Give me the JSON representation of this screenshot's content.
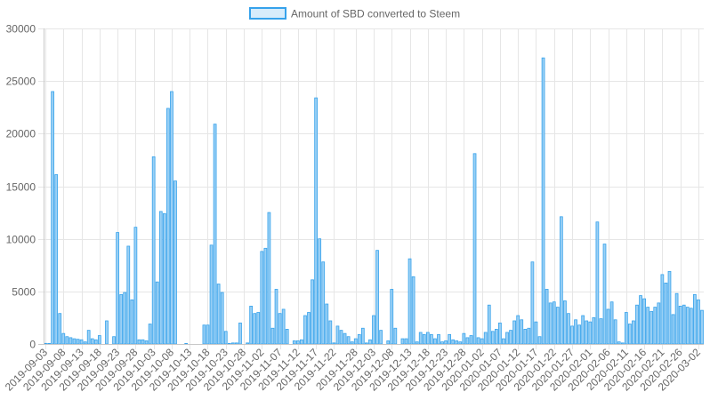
{
  "chart_data": {
    "type": "bar",
    "title": "",
    "xlabel": "",
    "ylabel": "",
    "ylim": [
      0,
      30000
    ],
    "y_ticks": [
      "0",
      "5000",
      "10000",
      "15000",
      "20000",
      "25000",
      "30000"
    ],
    "grid": true,
    "legend_position": "top-center",
    "start_date": "2019-09-03",
    "x_tick_labels": [
      "2019-09-03",
      "2019-09-08",
      "2019-09-13",
      "2019-09-18",
      "2019-09-23",
      "2019-09-28",
      "2019-10-03",
      "2019-10-08",
      "2019-10-13",
      "2019-10-18",
      "2019-10-23",
      "2019-10-28",
      "2019-11-02",
      "2019-11-07",
      "2019-11-12",
      "2019-11-17",
      "2019-11-22",
      "2019-11-28",
      "2019-12-03",
      "2019-12-08",
      "2019-12-13",
      "2019-12-18",
      "2019-12-23",
      "2019-12-28",
      "2020-01-02",
      "2020-01-07",
      "2020-01-12",
      "2020-01-17",
      "2020-01-22",
      "2020-01-27",
      "2020-02-01",
      "2020-02-06",
      "2020-02-11",
      "2020-02-16",
      "2020-02-21",
      "2020-02-26",
      "2020-03-02"
    ],
    "series": [
      {
        "name": "Amount of SBD converted to Steem",
        "fill_color": "#9ad0f5",
        "border_color": "#36a2eb",
        "values": [
          60,
          50,
          24000,
          16100,
          2900,
          1000,
          700,
          600,
          500,
          450,
          400,
          200,
          1300,
          500,
          400,
          800,
          0,
          2200,
          0,
          700,
          10600,
          4700,
          4900,
          9300,
          4200,
          11100,
          400,
          400,
          300,
          1900,
          17800,
          5900,
          12600,
          12400,
          22400,
          24000,
          15500,
          0,
          0,
          50,
          0,
          0,
          0,
          0,
          1800,
          1800,
          9400,
          20900,
          5700,
          4900,
          1200,
          50,
          100,
          100,
          2000,
          0,
          100,
          3600,
          2900,
          3000,
          8800,
          9100,
          12500,
          1500,
          5200,
          2900,
          3300,
          1400,
          0,
          300,
          300,
          400,
          2700,
          3000,
          6100,
          23400,
          10000,
          7800,
          3800,
          2200,
          100,
          1700,
          1300,
          1000,
          700,
          200,
          500,
          900,
          1500,
          100,
          400,
          2700,
          8900,
          1300,
          0,
          300,
          5200,
          1500,
          0,
          500,
          500,
          8100,
          6400,
          200,
          1100,
          900,
          1100,
          900,
          500,
          900,
          200,
          300,
          900,
          400,
          300,
          200,
          1000,
          600,
          800,
          18100,
          600,
          500,
          1100,
          3700,
          1200,
          1400,
          2000,
          500,
          1100,
          1300,
          2200,
          2700,
          2300,
          1400,
          1500,
          7800,
          2100,
          700,
          27200,
          5200,
          3900,
          4000,
          3500,
          12100,
          4100,
          2900,
          1700,
          2300,
          1800,
          2700,
          2200,
          2100,
          2500,
          11600,
          2400,
          9500,
          3300,
          4000,
          2300,
          200,
          100,
          3000,
          1900,
          2200,
          3700,
          4600,
          4300,
          3500,
          3100,
          3500,
          3900,
          6600,
          5800,
          6900,
          2800,
          4800,
          3600,
          3700,
          3500,
          3400,
          4700,
          4200,
          3200
        ]
      }
    ]
  }
}
